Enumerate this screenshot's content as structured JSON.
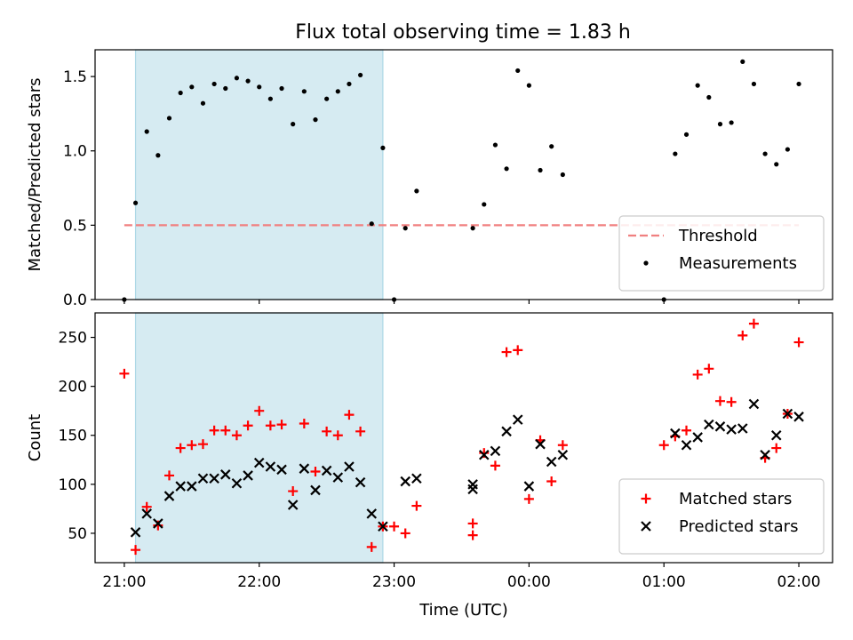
{
  "title": "Flux total observing time = 1.83 h",
  "chart_data": [
    {
      "type": "scatter",
      "ylabel": "Matched/Predicted stars",
      "xlabel": "",
      "xlim": [
        "20:47",
        "02:15"
      ],
      "ylim": [
        0,
        1.68
      ],
      "yticks": [
        0.0,
        0.5,
        1.0,
        1.5
      ],
      "ytick_labels": [
        "0.0",
        "0.5",
        "1.0",
        "1.5"
      ],
      "grid": false,
      "legend_position": "bottom-right",
      "shaded_span": {
        "start": "21:05",
        "end": "22:55",
        "color": "#add8e6"
      },
      "threshold": {
        "name": "Threshold",
        "value": 0.5,
        "x_start": "21:00",
        "x_end": "22:00+4h",
        "color": "#f08080"
      },
      "series": [
        {
          "name": "Measurements",
          "color": "#000000",
          "marker": "dot",
          "x": [
            "21:00",
            "21:05",
            "21:10",
            "21:15",
            "21:20",
            "21:25",
            "21:30",
            "21:35",
            "21:40",
            "21:45",
            "21:50",
            "21:55",
            "22:00",
            "22:05",
            "22:10",
            "22:15",
            "22:20",
            "22:25",
            "22:30",
            "22:35",
            "22:40",
            "22:45",
            "22:50",
            "22:55",
            "23:00",
            "23:05",
            "23:10",
            "23:35",
            "23:40",
            "23:45",
            "23:50",
            "23:55",
            "24:00",
            "24:05",
            "24:10",
            "24:15",
            "25:00",
            "25:05",
            "25:10",
            "25:15",
            "25:20",
            "25:25",
            "25:30",
            "25:35",
            "25:40",
            "25:45",
            "25:50",
            "25:55",
            "26:00"
          ],
          "y": [
            0.0,
            0.65,
            1.13,
            0.97,
            1.22,
            1.39,
            1.43,
            1.32,
            1.45,
            1.42,
            1.49,
            1.47,
            1.43,
            1.35,
            1.42,
            1.18,
            1.4,
            1.21,
            1.35,
            1.4,
            1.45,
            1.51,
            0.51,
            1.02,
            0.0,
            0.48,
            0.73,
            0.48,
            0.64,
            1.04,
            0.88,
            1.54,
            1.44,
            0.87,
            1.03,
            0.84,
            0.0,
            0.98,
            1.11,
            1.44,
            1.36,
            1.18,
            1.19,
            1.6,
            1.45,
            0.98,
            0.91,
            1.01,
            1.45
          ]
        }
      ]
    },
    {
      "type": "scatter",
      "ylabel": "Count",
      "xlabel": "Time (UTC)",
      "xlim": [
        "20:47",
        "02:15"
      ],
      "ylim": [
        20,
        275
      ],
      "xticks": [
        "21:00",
        "22:00",
        "23:00",
        "00:00",
        "01:00",
        "02:00"
      ],
      "yticks": [
        50,
        100,
        150,
        200,
        250
      ],
      "ytick_labels": [
        "50",
        "100",
        "150",
        "200",
        "250"
      ],
      "grid": false,
      "legend_position": "bottom-right",
      "shaded_span": {
        "start": "21:05",
        "end": "22:55",
        "color": "#add8e6"
      },
      "series": [
        {
          "name": "Matched stars",
          "color": "#ff0000",
          "marker": "plus",
          "points": [
            [
              "21:00",
              213
            ],
            [
              "21:05",
              33
            ],
            [
              "21:10",
              77
            ],
            [
              "21:15",
              58
            ],
            [
              "21:20",
              109
            ],
            [
              "21:25",
              137
            ],
            [
              "21:30",
              140
            ],
            [
              "21:35",
              141
            ],
            [
              "21:40",
              155
            ],
            [
              "21:45",
              155
            ],
            [
              "21:50",
              150
            ],
            [
              "21:55",
              160
            ],
            [
              "22:00",
              175
            ],
            [
              "22:05",
              160
            ],
            [
              "22:10",
              161
            ],
            [
              "22:15",
              93
            ],
            [
              "22:20",
              162
            ],
            [
              "22:25",
              113
            ],
            [
              "22:30",
              154
            ],
            [
              "22:35",
              150
            ],
            [
              "22:40",
              171
            ],
            [
              "22:45",
              154
            ],
            [
              "22:50",
              36
            ],
            [
              "22:55",
              57
            ],
            [
              "23:00",
              57
            ],
            [
              "23:05",
              50
            ],
            [
              "23:10",
              78
            ],
            [
              "23:35",
              48
            ],
            [
              "23:35",
              60
            ],
            [
              "23:40",
              132
            ],
            [
              "23:45",
              119
            ],
            [
              "23:50",
              235
            ],
            [
              "23:55",
              237
            ],
            [
              "24:00",
              85
            ],
            [
              "24:05",
              145
            ],
            [
              "24:10",
              103
            ],
            [
              "24:15",
              140
            ],
            [
              "25:00",
              140
            ],
            [
              "25:05",
              149
            ],
            [
              "25:10",
              155
            ],
            [
              "25:15",
              212
            ],
            [
              "25:20",
              218
            ],
            [
              "25:25",
              185
            ],
            [
              "25:30",
              184
            ],
            [
              "25:35",
              252
            ],
            [
              "25:40",
              264
            ],
            [
              "25:45",
              127
            ],
            [
              "25:50",
              137
            ],
            [
              "25:55",
              172
            ],
            [
              "26:00",
              245
            ]
          ]
        },
        {
          "name": "Predicted stars",
          "color": "#000000",
          "marker": "x",
          "points": [
            [
              "21:05",
              51
            ],
            [
              "21:10",
              70
            ],
            [
              "21:15",
              60
            ],
            [
              "21:20",
              88
            ],
            [
              "21:25",
              98
            ],
            [
              "21:30",
              98
            ],
            [
              "21:35",
              106
            ],
            [
              "21:40",
              106
            ],
            [
              "21:45",
              110
            ],
            [
              "21:50",
              101
            ],
            [
              "21:55",
              109
            ],
            [
              "22:00",
              122
            ],
            [
              "22:05",
              118
            ],
            [
              "22:10",
              115
            ],
            [
              "22:15",
              79
            ],
            [
              "22:20",
              116
            ],
            [
              "22:25",
              94
            ],
            [
              "22:30",
              114
            ],
            [
              "22:35",
              107
            ],
            [
              "22:40",
              118
            ],
            [
              "22:45",
              102
            ],
            [
              "22:50",
              70
            ],
            [
              "22:55",
              57
            ],
            [
              "23:05",
              103
            ],
            [
              "23:10",
              106
            ],
            [
              "23:35",
              100
            ],
            [
              "23:35",
              95
            ],
            [
              "23:40",
              130
            ],
            [
              "23:45",
              134
            ],
            [
              "23:50",
              154
            ],
            [
              "23:55",
              166
            ],
            [
              "24:00",
              98
            ],
            [
              "24:05",
              141
            ],
            [
              "24:10",
              123
            ],
            [
              "24:15",
              130
            ],
            [
              "25:05",
              152
            ],
            [
              "25:10",
              140
            ],
            [
              "25:15",
              148
            ],
            [
              "25:20",
              161
            ],
            [
              "25:25",
              159
            ],
            [
              "25:30",
              156
            ],
            [
              "25:35",
              157
            ],
            [
              "25:40",
              182
            ],
            [
              "25:45",
              130
            ],
            [
              "25:50",
              150
            ],
            [
              "25:55",
              172
            ],
            [
              "26:00",
              169
            ]
          ]
        }
      ]
    }
  ]
}
